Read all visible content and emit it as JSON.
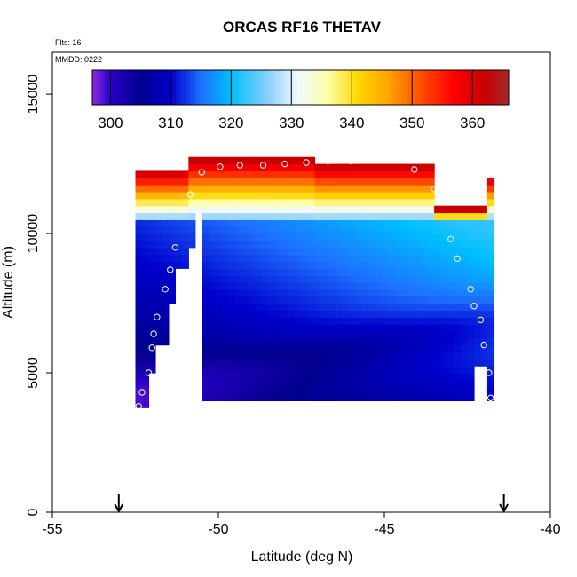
{
  "chart_data": {
    "type": "heatmap",
    "title": "ORCAS RF16 THETAV",
    "annotations": {
      "flights": "Flts: 16",
      "date": "MMDD: 0222"
    },
    "xlabel": "Latitude (deg N)",
    "ylabel": "Altitude (m)",
    "xlim": [
      -55,
      -40
    ],
    "ylim": [
      0,
      16500
    ],
    "x_ticks": [
      -55,
      -50,
      -45,
      -40
    ],
    "x_tick_labels": [
      "-55",
      "-50",
      "-45",
      "-40"
    ],
    "y_ticks": [
      0,
      5000,
      10000,
      15000
    ],
    "y_tick_labels": [
      "0",
      "5000",
      "10000",
      "15000"
    ],
    "colorbar": {
      "range": [
        297,
        366
      ],
      "ticks": [
        300,
        310,
        320,
        330,
        340,
        350,
        360
      ],
      "tick_labels": [
        "300",
        "310",
        "320",
        "330",
        "340",
        "350",
        "360"
      ],
      "stops": [
        {
          "v": 297,
          "color": "#8a2be2"
        },
        {
          "v": 300,
          "color": "#2a00c8"
        },
        {
          "v": 305,
          "color": "#00008c"
        },
        {
          "v": 310,
          "color": "#0000cd"
        },
        {
          "v": 315,
          "color": "#1e6fff"
        },
        {
          "v": 320,
          "color": "#00bfff"
        },
        {
          "v": 326,
          "color": "#87cefa"
        },
        {
          "v": 331,
          "color": "#f0f8ff"
        },
        {
          "v": 336,
          "color": "#ffffaa"
        },
        {
          "v": 341,
          "color": "#ffd700"
        },
        {
          "v": 346,
          "color": "#ffa500"
        },
        {
          "v": 352,
          "color": "#ff4500"
        },
        {
          "v": 357,
          "color": "#ff0000"
        },
        {
          "v": 362,
          "color": "#c80000"
        },
        {
          "v": 366,
          "color": "#a52a2a"
        }
      ]
    },
    "profile_bounds": [
      {
        "lat": -52.4,
        "bottom": 3800
      },
      {
        "lat": -52.0,
        "bottom": 5000
      },
      {
        "lat": -51.8,
        "bottom": 6000
      },
      {
        "lat": -51.4,
        "bottom": 7600
      },
      {
        "lat": -51.2,
        "bottom": 8900
      },
      {
        "lat": -50.8,
        "bottom": 9700
      },
      {
        "lat": -50.6,
        "bottom": 10900
      },
      {
        "lat": -43.9,
        "bottom": 11600
      },
      {
        "lat": -43.6,
        "bottom": 10600
      },
      {
        "lat": -43.3,
        "bottom": 10000
      },
      {
        "lat": -43.0,
        "bottom": 9200
      },
      {
        "lat": -42.8,
        "bottom": 8200
      },
      {
        "lat": -42.4,
        "bottom": 7700
      },
      {
        "lat": -42.2,
        "bottom": 5300
      },
      {
        "lat": -41.8,
        "bottom": 4100
      }
    ],
    "top_bounds": [
      {
        "lat_from": -52.4,
        "lat_to": -50.8,
        "top": 12200
      },
      {
        "lat_from": -50.8,
        "lat_to": -47.0,
        "top": 12600
      },
      {
        "lat_from": -47.0,
        "lat_to": -43.4,
        "top": 12400
      },
      {
        "lat_from": -43.4,
        "lat_to": -41.8,
        "top": 10800
      }
    ],
    "flight_points": [
      {
        "lat": -52.4,
        "alt": 3800
      },
      {
        "lat": -52.3,
        "alt": 4300
      },
      {
        "lat": -52.1,
        "alt": 5000
      },
      {
        "lat": -52.0,
        "alt": 5900
      },
      {
        "lat": -51.95,
        "alt": 6400
      },
      {
        "lat": -51.85,
        "alt": 7000
      },
      {
        "lat": -51.6,
        "alt": 8000
      },
      {
        "lat": -51.45,
        "alt": 8700
      },
      {
        "lat": -51.3,
        "alt": 9500
      },
      {
        "lat": -50.85,
        "alt": 11400
      },
      {
        "lat": -50.5,
        "alt": 12200
      },
      {
        "lat": -49.95,
        "alt": 12400
      },
      {
        "lat": -49.35,
        "alt": 12450
      },
      {
        "lat": -48.65,
        "alt": 12450
      },
      {
        "lat": -48.0,
        "alt": 12500
      },
      {
        "lat": -47.35,
        "alt": 12550
      },
      {
        "lat": -46.7,
        "alt": 12600
      },
      {
        "lat": -46.0,
        "alt": 12600
      },
      {
        "lat": -45.35,
        "alt": 12650
      },
      {
        "lat": -44.7,
        "alt": 12650
      },
      {
        "lat": -44.1,
        "alt": 12300
      },
      {
        "lat": -43.5,
        "alt": 11600
      },
      {
        "lat": -43.0,
        "alt": 9800
      },
      {
        "lat": -42.8,
        "alt": 9100
      },
      {
        "lat": -42.4,
        "alt": 8000
      },
      {
        "lat": -42.3,
        "alt": 7400
      },
      {
        "lat": -42.1,
        "alt": 6900
      },
      {
        "lat": -42.0,
        "alt": 6000
      },
      {
        "lat": -41.85,
        "alt": 5000
      },
      {
        "lat": -41.8,
        "alt": 4100
      }
    ],
    "markers": [
      {
        "lat": -53.0,
        "symbol": "↓"
      },
      {
        "lat": -41.4,
        "symbol": "↓"
      }
    ]
  }
}
